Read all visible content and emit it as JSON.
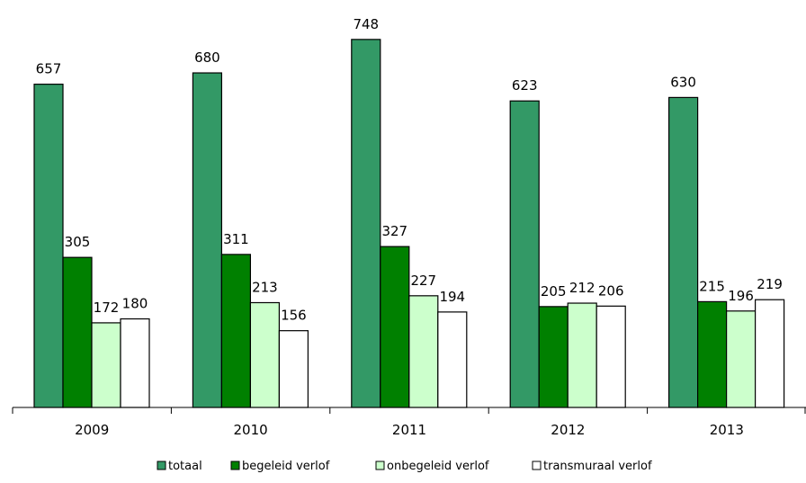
{
  "chart_data": {
    "type": "bar",
    "title": "",
    "xlabel": "",
    "ylabel": "",
    "categories": [
      "2009",
      "2010",
      "2011",
      "2012",
      "2013"
    ],
    "series": [
      {
        "name": "totaal",
        "values": [
          657,
          680,
          748,
          623,
          630
        ],
        "color": "#339966"
      },
      {
        "name": "begeleid verlof",
        "values": [
          305,
          311,
          327,
          205,
          215
        ],
        "color": "#008000"
      },
      {
        "name": "onbegeleid verlof",
        "values": [
          172,
          213,
          227,
          212,
          196
        ],
        "color": "#ccffcc"
      },
      {
        "name": "transmuraal verlof",
        "values": [
          180,
          156,
          194,
          206,
          219
        ],
        "color": "#ffffff"
      }
    ],
    "ylim": [
      0,
      800
    ],
    "grid": false,
    "legend_position": "bottom",
    "data_labels": true,
    "show_y_axis": false
  }
}
